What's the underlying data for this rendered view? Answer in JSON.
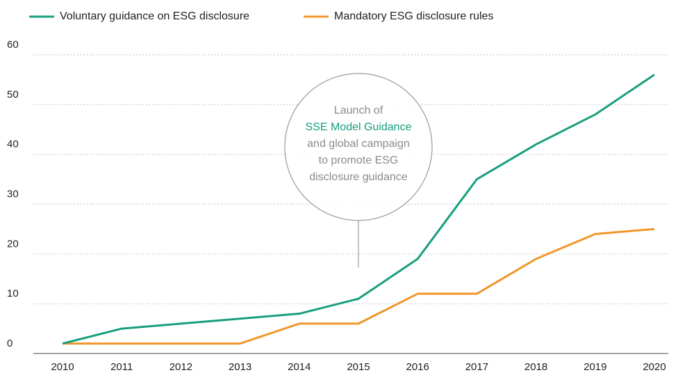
{
  "chart_data": {
    "type": "line",
    "categories": [
      "2010",
      "2011",
      "2012",
      "2013",
      "2014",
      "2015",
      "2016",
      "2017",
      "2018",
      "2019",
      "2020"
    ],
    "series": [
      {
        "name": "Voluntary guidance on ESG disclosure",
        "color": "#179e7e",
        "values": [
          2,
          5,
          6,
          7,
          8,
          11,
          19,
          35,
          42,
          48,
          56
        ]
      },
      {
        "name": "Mandatory ESG disclosure rules",
        "color": "#f0962a",
        "values": [
          2,
          2,
          2,
          2,
          6,
          6,
          12,
          12,
          19,
          24,
          25
        ]
      }
    ],
    "ylim": [
      0,
      60
    ],
    "yticks": [
      0,
      10,
      20,
      30,
      40,
      50,
      60
    ],
    "grid": true,
    "legend": "top-left",
    "annotation": {
      "lines": [
        "Launch of",
        "SSE Model Guidance",
        "and global campaign",
        "to promote ESG",
        "disclosure guidance"
      ],
      "category": "2015"
    }
  }
}
